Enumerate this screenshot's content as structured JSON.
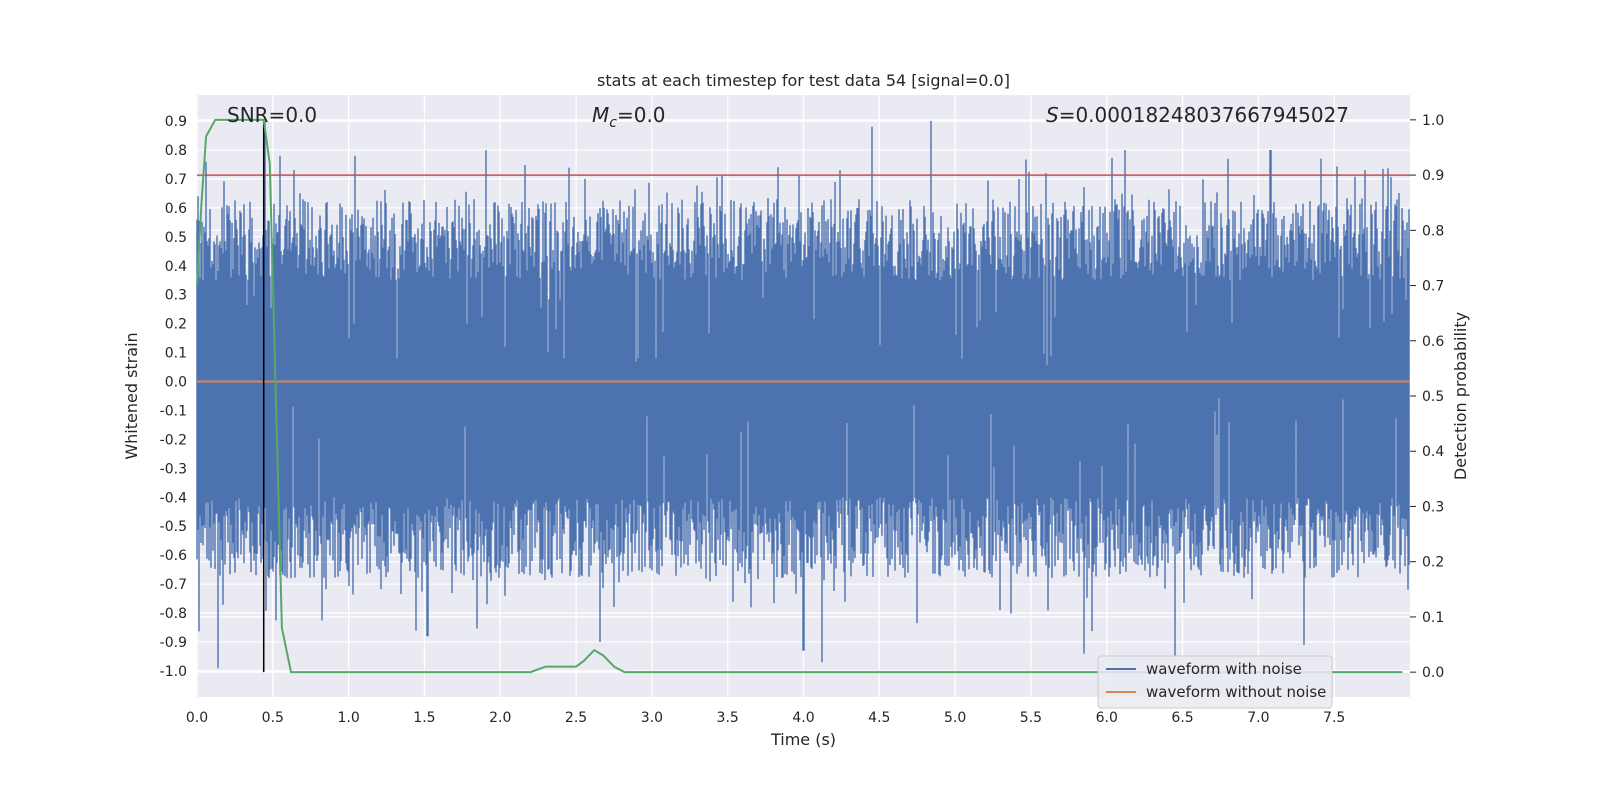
{
  "chart_data": {
    "type": "line",
    "title": "stats at each timestep for test data 54 [signal=0.0]",
    "xlabel": "Time (s)",
    "ylabel": "Whitened strain",
    "ylabel_right": "Detection probability",
    "xlim": [
      0.0,
      8.0
    ],
    "ylim": [
      -1.09,
      0.99
    ],
    "ylim_right": [
      -0.045,
      1.045
    ],
    "x_ticks": [
      "0.0",
      "0.5",
      "1.0",
      "1.5",
      "2.0",
      "2.5",
      "3.0",
      "3.5",
      "4.0",
      "4.5",
      "5.0",
      "5.5",
      "6.0",
      "6.5",
      "7.0",
      "7.5"
    ],
    "y_ticks": [
      "0.9",
      "0.8",
      "0.7",
      "0.6",
      "0.5",
      "0.4",
      "0.3",
      "0.2",
      "0.1",
      "0.0",
      "-0.1",
      "-0.2",
      "-0.3",
      "-0.4",
      "-0.5",
      "-0.6",
      "-0.7",
      "-0.8",
      "-0.9",
      "-1.0"
    ],
    "y_ticks_right": [
      "1.0",
      "0.9",
      "0.8",
      "0.7",
      "0.6",
      "0.5",
      "0.4",
      "0.3",
      "0.2",
      "0.1",
      "0.0"
    ],
    "annotations": {
      "snr_prefix": "SNR=",
      "snr_value": "0.0",
      "mc_symbol": "M",
      "mc_sub": "c",
      "mc_value": "=0.0",
      "s_symbol": "S",
      "s_value": "=0.00018248037667945027"
    },
    "threshold": 0.9,
    "marker_time": 0.44,
    "series": [
      {
        "name": "waveform with noise",
        "color": "#4c72b0",
        "axis": "left",
        "description": "dense noisy strain, roughly within [-0.6, 0.6] with spikes up to 0.9 and down to -1.0",
        "spike_samples": [
          [
            0.06,
            0.76
          ],
          [
            0.14,
            -0.99
          ],
          [
            0.45,
            0.9
          ],
          [
            0.55,
            0.78
          ],
          [
            1.04,
            0.78
          ],
          [
            1.52,
            -0.88
          ],
          [
            2.56,
            0.7
          ],
          [
            2.66,
            -0.9
          ],
          [
            3.46,
            0.71
          ],
          [
            4.0,
            -0.93
          ],
          [
            4.12,
            -0.97
          ],
          [
            4.45,
            0.88
          ],
          [
            4.84,
            0.9
          ],
          [
            5.6,
            0.72
          ],
          [
            5.85,
            -0.94
          ],
          [
            6.12,
            0.8
          ],
          [
            6.45,
            -0.95
          ],
          [
            7.08,
            0.8
          ],
          [
            7.3,
            -0.91
          ],
          [
            7.75,
            0.58
          ]
        ]
      },
      {
        "name": "waveform without noise",
        "color": "#dd8452",
        "axis": "left",
        "x": [
          0.0,
          8.0
        ],
        "y": [
          0.0,
          0.0
        ]
      },
      {
        "name": "detection probability",
        "color": "#55a868",
        "axis": "right",
        "x": [
          0.0,
          0.03,
          0.06,
          0.12,
          0.2,
          0.3,
          0.38,
          0.44,
          0.48,
          0.52,
          0.56,
          0.62,
          0.7,
          1.0,
          1.5,
          2.0,
          2.2,
          2.3,
          2.4,
          2.5,
          2.55,
          2.62,
          2.68,
          2.75,
          2.82,
          2.9,
          3.5,
          5.0,
          6.0,
          7.0,
          7.95
        ],
        "y": [
          0.7,
          0.85,
          0.97,
          1.0,
          1.0,
          1.0,
          1.0,
          1.0,
          0.92,
          0.5,
          0.08,
          0.0,
          0.0,
          0.0,
          0.0,
          0.0,
          0.0,
          0.01,
          0.01,
          0.01,
          0.02,
          0.04,
          0.03,
          0.01,
          0.0,
          0.0,
          0.0,
          0.0,
          0.0,
          0.0,
          0.0
        ]
      }
    ],
    "legend": [
      {
        "label": "waveform with noise",
        "color": "#4c72b0"
      },
      {
        "label": "waveform without noise",
        "color": "#dd8452"
      }
    ],
    "colors": {
      "background": "#eaeaf2",
      "grid": "#ffffff",
      "threshold_line": "#c44e52",
      "marker_line": "#000000"
    }
  }
}
